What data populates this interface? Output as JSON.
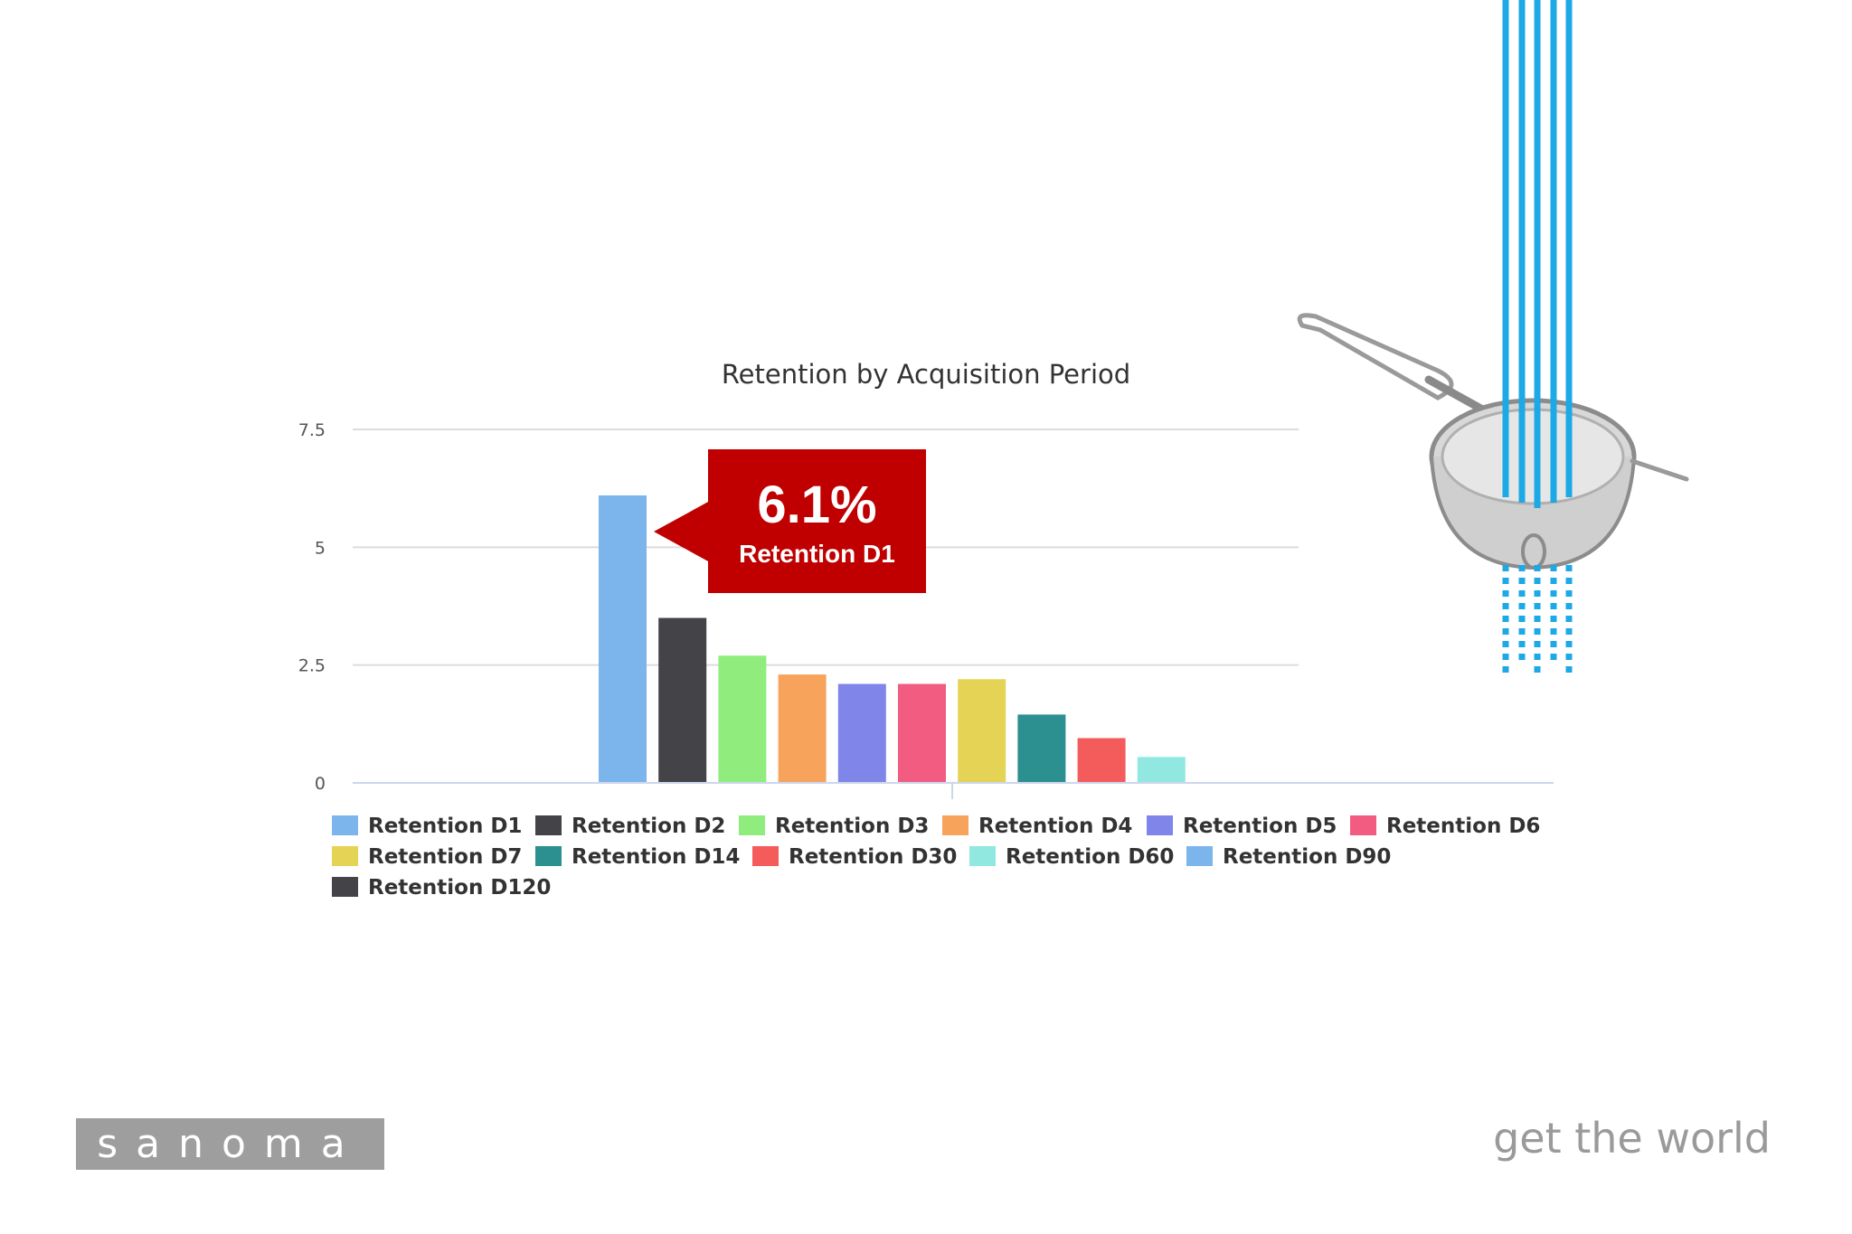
{
  "chart_data": {
    "type": "bar",
    "title": "Retention by Acquisition Period",
    "xlabel": "",
    "ylabel": "",
    "ylim": [
      0,
      7.5
    ],
    "yticks": [
      "0",
      "2.5",
      "5",
      "7.5"
    ],
    "grid": true,
    "legend_position": "bottom",
    "series": [
      {
        "name": "Retention D1",
        "value": 6.1,
        "color": "#7cb5ec"
      },
      {
        "name": "Retention D2",
        "value": 3.5,
        "color": "#434348"
      },
      {
        "name": "Retention D3",
        "value": 2.7,
        "color": "#90ed7d"
      },
      {
        "name": "Retention D4",
        "value": 2.3,
        "color": "#f7a35c"
      },
      {
        "name": "Retention D5",
        "value": 2.1,
        "color": "#8085e9"
      },
      {
        "name": "Retention D6",
        "value": 2.1,
        "color": "#f15c80"
      },
      {
        "name": "Retention D7",
        "value": 2.2,
        "color": "#e4d354"
      },
      {
        "name": "Retention D14",
        "value": 1.45,
        "color": "#2b908f"
      },
      {
        "name": "Retention D30",
        "value": 0.95,
        "color": "#f45b5b"
      },
      {
        "name": "Retention D60",
        "value": 0.55,
        "color": "#91e8e1"
      },
      {
        "name": "Retention D90",
        "value": null,
        "color": "#7cb5ec"
      },
      {
        "name": "Retention D120",
        "value": null,
        "color": "#434348"
      }
    ]
  },
  "callout": {
    "value": "6.1%",
    "label": "Retention D1",
    "color": "#c00000"
  },
  "branding": {
    "logo": "sanoma",
    "tagline": "get the world"
  },
  "decoration": {
    "icon": "strainer-icon",
    "stripe_color": "#1ca9e6"
  }
}
